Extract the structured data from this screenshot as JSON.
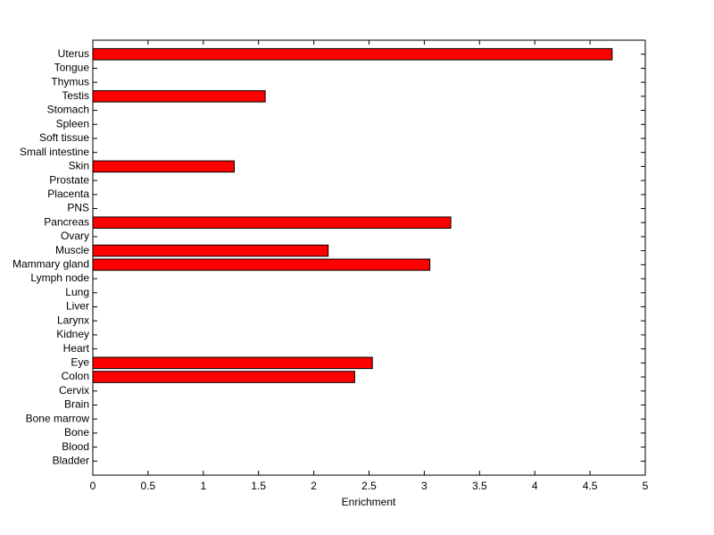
{
  "chart_data": {
    "type": "barh",
    "xlabel": "Enrichment",
    "categories": [
      "Uterus",
      "Tongue",
      "Thymus",
      "Testis",
      "Stomach",
      "Spleen",
      "Soft tissue",
      "Small intestine",
      "Skin",
      "Prostate",
      "Placenta",
      "PNS",
      "Pancreas",
      "Ovary",
      "Muscle",
      "Mammary gland",
      "Lymph node",
      "Lung",
      "Liver",
      "Larynx",
      "Kidney",
      "Heart",
      "Eye",
      "Colon",
      "Cervix",
      "Brain",
      "Bone marrow",
      "Bone",
      "Blood",
      "Bladder"
    ],
    "values": [
      4.7,
      0,
      0,
      1.56,
      0,
      0,
      0,
      0,
      1.28,
      0,
      0,
      0,
      3.24,
      0,
      2.13,
      3.05,
      0,
      0,
      0,
      0,
      0,
      0,
      2.53,
      2.37,
      0,
      0,
      0,
      0,
      0,
      0
    ],
    "color": "#ff0000",
    "xlim": [
      0,
      5
    ],
    "xticks": [
      0,
      0.5,
      1,
      1.5,
      2,
      2.5,
      3,
      3.5,
      4,
      4.5,
      5
    ]
  }
}
